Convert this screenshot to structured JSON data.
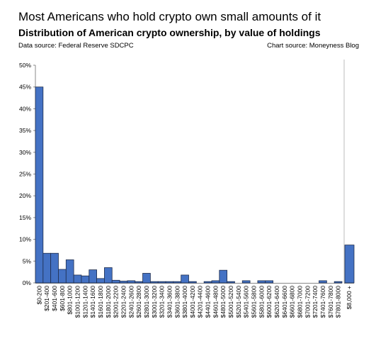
{
  "header": {
    "title": "Most Americans who hold crypto own small amounts of it",
    "subtitle": "Distribution of American crypto ownership, by value of holdings",
    "source_left": "Data source: Federal Reserve SDCPC",
    "source_right": "Chart source: Moneyness Blog"
  },
  "chart_data": {
    "type": "bar",
    "title": "Distribution of American crypto ownership, by value of holdings",
    "xlabel": "",
    "ylabel": "",
    "ylim": [
      0,
      50
    ],
    "yticks": [
      "0%",
      "5%",
      "10%",
      "15%",
      "20%",
      "25%",
      "30%",
      "35%",
      "40%",
      "45%",
      "50%"
    ],
    "grid": false,
    "bar_color": "#4472c4",
    "categories": [
      "$0-200",
      "$201-400",
      "$401-600",
      "$601-800",
      "$801-1000",
      "$1001-1200",
      "$1201-1400",
      "$1401-1600",
      "$1601-1800",
      "$1801-2000",
      "$2001-2200",
      "$2201-2400",
      "$2401-2600",
      "$2601-2800",
      "$2801-3000",
      "$3001-3200",
      "$3201-3400",
      "$3401-3600",
      "$3601-3800",
      "$3801-4000",
      "$4001-4200",
      "$4201-4400",
      "$4401-4600",
      "$4601-4800",
      "$4801-5000",
      "$5001-5200",
      "$5201-5400",
      "$5401-5600",
      "$5601-5800",
      "$5801-6000",
      "$6001-6200",
      "$6201-6400",
      "$6401-6600",
      "$6601-6800",
      "$6801-7000",
      "$7001-7200",
      "$7201-7400",
      "$7401-7600",
      "$7601-7800",
      "$7801-8000"
    ],
    "values": [
      45,
      6.8,
      6.8,
      3.1,
      5.3,
      1.8,
      1.6,
      3.0,
      1.0,
      3.5,
      0.6,
      0.4,
      0.5,
      0.3,
      2.2,
      0.3,
      0.3,
      0.3,
      0.3,
      1.8,
      0.3,
      0,
      0.3,
      0.5,
      2.9,
      0.3,
      0,
      0.5,
      0,
      0.5,
      0.5,
      0,
      0,
      0,
      0,
      0,
      0,
      0.5,
      0,
      0.3
    ],
    "overflow_bar": {
      "category": "$8,000 +",
      "value": 8.7
    },
    "tick_labels_shown": [
      "$0-200",
      "$201-400",
      "$401-600",
      "$601-800",
      "$801-1000",
      "$1001-1200",
      "$1201-1400",
      "$1401-1600",
      "$1601-1800",
      "$1801-2000",
      "$2001-2200",
      "$2201-2400",
      "$2401-2600",
      "$2601-2800",
      "$2801-3000",
      "$3001-3200",
      "$3201-3400",
      "$3401-3600",
      "$3601-3800",
      "$3801-4000",
      "$4001-4200",
      "$4201-4400",
      "$4401-4600",
      "$4601-4800",
      "$4801-5000",
      "$5001-5200",
      "$5201-5400",
      "$5401-5600",
      "$5601-5800",
      "$5801-6000",
      "$6001-6200",
      "$6201-6400",
      "$6401-6600",
      "$6601-6800",
      "$6801-7000",
      "$7001-7200",
      "$7201-7400",
      "$7401-7600",
      "$7601-7800",
      "$7801-8000"
    ]
  }
}
